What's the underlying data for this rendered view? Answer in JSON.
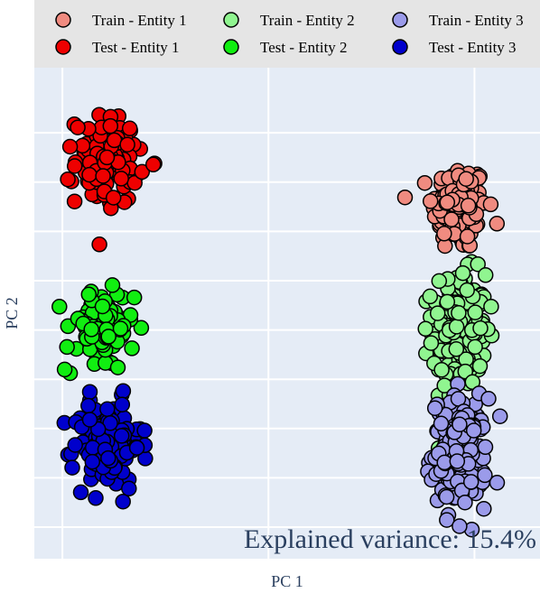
{
  "chart_data": {
    "type": "scatter",
    "title": "",
    "xlabel": "PC 1",
    "ylabel": "PC 2",
    "annotation": "Explained variance: 15.4%",
    "legend_position": "top",
    "grid": true,
    "background": "#e5ecf6",
    "series": [
      {
        "name": "Train - Entity 1",
        "color": "#f08b80",
        "center": [
          0.92,
          0.62
        ],
        "spread": [
          0.12,
          0.17
        ],
        "count": 150
      },
      {
        "name": "Train - Entity 2",
        "color": "#90f590",
        "center": [
          0.92,
          0.0
        ],
        "spread": [
          0.12,
          0.22
        ],
        "count": 200
      },
      {
        "name": "Train - Entity 3",
        "color": "#9b9bea",
        "center": [
          0.92,
          -0.62
        ],
        "spread": [
          0.12,
          0.21
        ],
        "count": 200
      },
      {
        "name": "Test - Entity 1",
        "color": "#ee0000",
        "center": [
          -0.96,
          0.86
        ],
        "spread": [
          0.14,
          0.17
        ],
        "count": 110
      },
      {
        "name": "Test - Entity 2",
        "color": "#11ee11",
        "center": [
          -1.0,
          0.0
        ],
        "spread": [
          0.15,
          0.16
        ],
        "count": 100
      },
      {
        "name": "Test - Entity 3",
        "color": "#0000cc",
        "center": [
          -0.96,
          -0.58
        ],
        "spread": [
          0.15,
          0.17
        ],
        "count": 130
      }
    ],
    "xlim": [
      -1.35,
      1.35
    ],
    "ylim": [
      -1.16,
      1.33
    ]
  }
}
